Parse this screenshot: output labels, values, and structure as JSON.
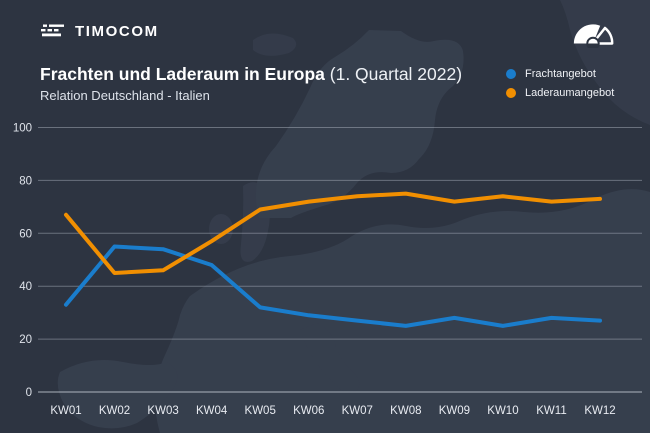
{
  "brand": {
    "name": "TIMOCOM"
  },
  "header": {
    "title": "Frachten und Laderaum in Europa",
    "title_suffix": " (1. Quartal 2022)",
    "subtitle": "Relation Deutschland - Italien"
  },
  "icons": {
    "logo_icon": "timocom-road-lines",
    "gauge_icon": "barometer-gauge"
  },
  "colors": {
    "background": "#2d3441",
    "frachtangebot": "#1a7dcc",
    "laderaumangebot": "#f18f01"
  },
  "chart_data": {
    "type": "line",
    "title": "Frachten und Laderaum in Europa (1. Quartal 2022)",
    "subtitle": "Relation Deutschland - Italien",
    "categories": [
      "KW01",
      "KW02",
      "KW03",
      "KW04",
      "KW05",
      "KW06",
      "KW07",
      "KW08",
      "KW09",
      "KW10",
      "KW11",
      "KW12"
    ],
    "series": [
      {
        "name": "Frachtangebot",
        "color": "#1a7dcc",
        "values": [
          33,
          55,
          54,
          48,
          32,
          29,
          27,
          25,
          28,
          25,
          28,
          27
        ]
      },
      {
        "name": "Laderaumangebot",
        "color": "#f18f01",
        "values": [
          67,
          45,
          46,
          57,
          69,
          72,
          74,
          75,
          72,
          74,
          72,
          73
        ]
      }
    ],
    "xlabel": "",
    "ylabel": "",
    "ylim": [
      0,
      100
    ],
    "yticks": [
      0,
      20,
      40,
      60,
      80,
      100
    ],
    "grid": true,
    "legend_position": "top-right"
  }
}
